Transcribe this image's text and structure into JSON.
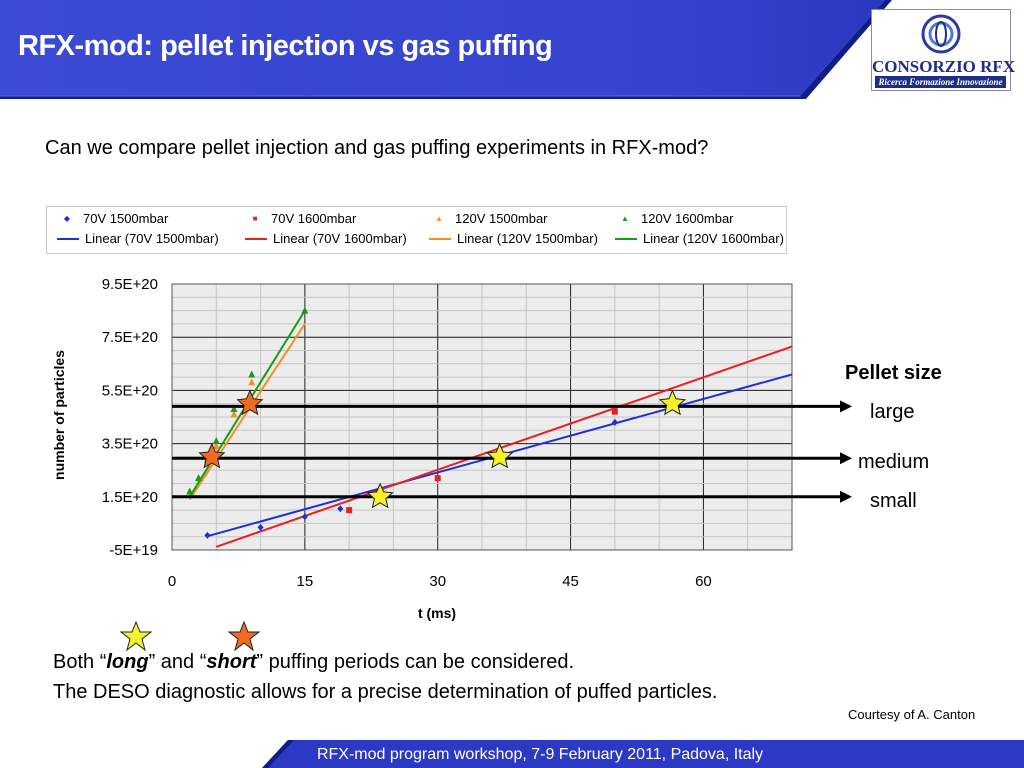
{
  "slide": {
    "title": "RFX-mod: pellet injection vs gas puffing",
    "question": "Can we compare pellet injection and gas puffing experiments in RFX-mod?",
    "body_line1_prefix": "Both “",
    "body_line1_long": "long",
    "body_line1_middle": "” and “",
    "body_line1_short": "short",
    "body_line1_suffix": "” puffing periods can be considered.",
    "body_line2": "The DESO diagnostic allows for a precise determination of puffed particles.",
    "courtesy": "Courtesy of A. Canton",
    "footer": "RFX-mod program workshop, 7-9 February 2011, Padova, Italy"
  },
  "logo": {
    "name": "CONSORZIO RFX",
    "tagline": "Ricerca Formazione Innovazione"
  },
  "colors": {
    "header_blue": "#3e4fd8",
    "header_dark": "#1a2a9c",
    "series_blue": "#1f2fd6",
    "series_red": "#e82020",
    "series_orange": "#f5901e",
    "series_green": "#1a9a1a",
    "star_yellow": "#f6f22a",
    "star_orange": "#f26a22"
  },
  "pellet_annotation": {
    "heading": "Pellet size",
    "levels": [
      {
        "name": "large",
        "y": 4.9e+20
      },
      {
        "name": "medium",
        "y": 2.95e+20
      },
      {
        "name": "small",
        "y": 1.5e+20
      }
    ]
  },
  "chart_data": {
    "type": "scatter",
    "xlabel": "t (ms)",
    "ylabel": "number of particles",
    "xlim": [
      0,
      70
    ],
    "ylim": [
      -5e+19,
      9.5e+20
    ],
    "x_ticks": [
      "0",
      "15",
      "30",
      "45",
      "60"
    ],
    "x_tick_values": [
      0,
      15,
      30,
      45,
      60
    ],
    "y_ticks": [
      "9.5E+20",
      "7.5E+20",
      "5.5E+20",
      "3.5E+20",
      "1.5E+20",
      "-5E+19"
    ],
    "y_tick_values": [
      9.5e+20,
      7.5e+20,
      5.5e+20,
      3.5e+20,
      1.5e+20,
      -5e+19
    ],
    "grid": true,
    "legend_position": "top",
    "series": [
      {
        "name": "70V 1500mbar",
        "marker": "diamond",
        "color": "#1f2fd6",
        "x": [
          4,
          10,
          15,
          19,
          50
        ],
        "y": [
          5e+18,
          3.5e+19,
          7.5e+19,
          1.05e+20,
          4.3e+20
        ]
      },
      {
        "name": "70V 1600mbar",
        "marker": "square",
        "color": "#e82020",
        "x": [
          20,
          30,
          50
        ],
        "y": [
          1e+20,
          2.2e+20,
          4.7e+20
        ]
      },
      {
        "name": "120V 1500mbar",
        "marker": "triangle",
        "color": "#f5901e",
        "x": [
          2,
          3,
          4,
          5,
          7,
          9
        ],
        "y": [
          1.7e+20,
          2.2e+20,
          2.8e+20,
          3.4e+20,
          4.6e+20,
          5.8e+20
        ]
      },
      {
        "name": "120V 1600mbar",
        "marker": "triangle",
        "color": "#1a9a1a",
        "x": [
          2,
          3,
          4,
          5,
          7,
          9,
          15
        ],
        "y": [
          1.7e+20,
          2.2e+20,
          2.9e+20,
          3.6e+20,
          4.8e+20,
          6.1e+20,
          8.5e+20
        ]
      }
    ],
    "fits": [
      {
        "name": "Linear (70V 1500mbar)",
        "color": "#1f2fd6",
        "x": [
          4,
          70
        ],
        "y": [
          2e+18,
          6.1e+20
        ]
      },
      {
        "name": "Linear (70V 1600mbar)",
        "color": "#e82020",
        "x": [
          5,
          70
        ],
        "y": [
          -3.8e+19,
          7.15e+20
        ]
      },
      {
        "name": "Linear (120V 1500mbar)",
        "color": "#f5901e",
        "x": [
          2,
          15
        ],
        "y": [
          1.4e+20,
          8e+20
        ]
      },
      {
        "name": "Linear (120V 1600mbar)",
        "color": "#1a9a1a",
        "x": [
          2,
          15
        ],
        "y": [
          1.5e+20,
          8.5e+20
        ]
      }
    ],
    "highlight_stars": [
      {
        "x": 23.5,
        "y": 1.5e+20,
        "color": "#f6f22a"
      },
      {
        "x": 37,
        "y": 3e+20,
        "color": "#f6f22a"
      },
      {
        "x": 56.5,
        "y": 5e+20,
        "color": "#f6f22a"
      },
      {
        "x": 4.5,
        "y": 3e+20,
        "color": "#f26a22"
      },
      {
        "x": 8.8,
        "y": 5e+20,
        "color": "#f26a22"
      }
    ]
  },
  "legend": {
    "entries": [
      {
        "label": "70V 1500mbar",
        "kind": "marker",
        "symbol": "◆",
        "color": "#1f2fd6"
      },
      {
        "label": "70V 1600mbar",
        "kind": "marker",
        "symbol": "■",
        "color": "#e82020"
      },
      {
        "label": "120V 1500mbar",
        "kind": "marker",
        "symbol": "▲",
        "color": "#f5901e"
      },
      {
        "label": "120V 1600mbar",
        "kind": "marker",
        "symbol": "▲",
        "color": "#1a9a1a"
      },
      {
        "label": "Linear (70V 1500mbar)",
        "kind": "line",
        "color": "#1f2fd6"
      },
      {
        "label": "Linear (70V 1600mbar)",
        "kind": "line",
        "color": "#e82020"
      },
      {
        "label": "Linear (120V 1500mbar)",
        "kind": "line",
        "color": "#f5901e"
      },
      {
        "label": "Linear (120V 1600mbar)",
        "kind": "line",
        "color": "#1a9a1a"
      }
    ]
  }
}
